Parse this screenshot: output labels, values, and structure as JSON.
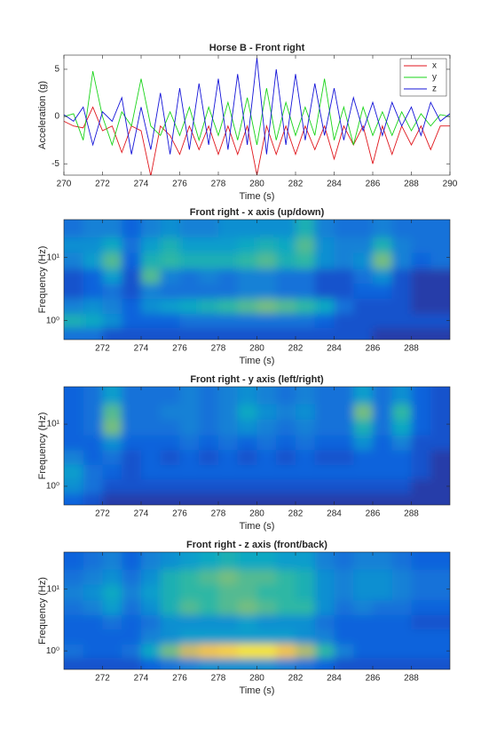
{
  "chart_data": [
    {
      "type": "line",
      "title": "Horse B - Front right",
      "x_label": "Time (s)",
      "y_label": "Acceleration (g)",
      "xlim": [
        270,
        290
      ],
      "xticks": [
        270,
        272,
        274,
        276,
        278,
        280,
        282,
        284,
        286,
        288,
        290
      ],
      "ylim": [
        -6.2,
        6.5
      ],
      "yticks": [
        -5,
        0,
        5
      ],
      "legend": "northeast",
      "x": [
        270,
        270.5,
        271,
        271.5,
        272,
        272.5,
        273,
        273.5,
        274,
        274.5,
        275,
        275.5,
        276,
        276.5,
        277,
        277.5,
        278,
        278.5,
        279,
        279.5,
        280,
        280.5,
        281,
        281.5,
        282,
        282.5,
        283,
        283.5,
        284,
        284.5,
        285,
        285.5,
        286,
        286.5,
        287,
        287.5,
        288,
        288.5,
        289,
        289.5,
        290
      ],
      "series": [
        {
          "name": "x",
          "color": "#e0161c",
          "values": [
            -0.5,
            -1,
            -1.2,
            1,
            -1.5,
            -1,
            -3.8,
            -1,
            -1.5,
            -6.3,
            -1,
            -2,
            -4,
            -1,
            -3.5,
            -1,
            -4,
            -1,
            -4,
            -1,
            -6.2,
            -1,
            -4,
            -1,
            -4,
            -1,
            -3.5,
            -1,
            -4.5,
            -1,
            -3,
            -1,
            -5,
            -1,
            -4,
            -1,
            -3,
            -1,
            -3.5,
            -1,
            -1
          ]
        },
        {
          "name": "y",
          "color": "#19d419",
          "values": [
            0,
            0.3,
            -2.5,
            4.8,
            0,
            -3,
            0.5,
            -1,
            4,
            -1,
            -2,
            0.5,
            -2,
            1,
            -2.5,
            1,
            -2,
            1.5,
            -2.5,
            2,
            -3,
            3,
            -2.5,
            1.5,
            -2,
            1,
            -2,
            4,
            -2.5,
            1,
            -3,
            1,
            -2,
            0.5,
            -2,
            0.5,
            -1.5,
            0.3,
            -1,
            0.2,
            0
          ]
        },
        {
          "name": "z",
          "color": "#1414d8",
          "values": [
            0.2,
            -0.5,
            1,
            -3,
            0.5,
            -0.5,
            2,
            -4,
            1,
            -3.5,
            2.5,
            -4,
            3,
            -3.5,
            3.5,
            -3,
            4,
            -3.5,
            4.5,
            -3,
            6.2,
            -4,
            5,
            -3,
            4.5,
            -2.5,
            3.5,
            -2,
            3,
            -2.5,
            2,
            -1.5,
            1.5,
            -2,
            1.5,
            -1,
            1,
            -2,
            1.5,
            -0.5,
            0.3
          ]
        }
      ]
    },
    {
      "type": "heatmap",
      "title": "Front right - x axis (up/down)",
      "x_label": "Time (s)",
      "y_label": "Frequency (Hz)",
      "xlim": [
        270,
        290
      ],
      "xticks": [
        272,
        274,
        276,
        278,
        280,
        282,
        284,
        286,
        288
      ],
      "ylim": [
        0.5,
        40
      ],
      "log_y": true,
      "yticks": [
        {
          "value": 1,
          "label": "10⁰"
        },
        {
          "value": 10,
          "label": "10¹"
        }
      ],
      "colormap": [
        "#352a87",
        "#0f5cdd",
        "#1481d6",
        "#06a4ca",
        "#2eb7a4",
        "#87bf77",
        "#d1bb59",
        "#fec832",
        "#f9fb0e"
      ],
      "x": [
        270.5,
        271.5,
        272.5,
        273.5,
        274.5,
        275.5,
        276.5,
        277.5,
        278.5,
        279.5,
        280.5,
        281.5,
        282.5,
        283.5,
        284.5,
        285.5,
        286.5,
        287.5,
        288.5,
        289.5
      ],
      "frequencies": [
        0.6,
        1,
        1.7,
        3,
        5,
        9,
        16,
        28
      ],
      "z": [
        [
          0.2,
          0.2,
          0.1,
          0.1,
          0.1,
          0.1,
          0.1,
          0.1,
          0.1,
          0.1,
          0.1,
          0.1,
          0.1,
          0.1,
          0.1,
          0.1,
          0.05,
          0.05,
          0.05,
          0.05
        ],
        [
          0.45,
          0.4,
          0.3,
          0.15,
          0.15,
          0.15,
          0.2,
          0.2,
          0.2,
          0.2,
          0.2,
          0.2,
          0.2,
          0.15,
          0.1,
          0.1,
          0.1,
          0.1,
          0.1,
          0.1
        ],
        [
          0.25,
          0.3,
          0.25,
          0.15,
          0.3,
          0.35,
          0.4,
          0.45,
          0.5,
          0.55,
          0.6,
          0.55,
          0.5,
          0.4,
          0.2,
          0.1,
          0.1,
          0.1,
          0.05,
          0.05
        ],
        [
          0.1,
          0.15,
          0.2,
          0.1,
          0.25,
          0.2,
          0.2,
          0.2,
          0.2,
          0.25,
          0.25,
          0.2,
          0.2,
          0.1,
          0.1,
          0.15,
          0.15,
          0.1,
          0.05,
          0.05
        ],
        [
          0.1,
          0.15,
          0.35,
          0.1,
          0.55,
          0.25,
          0.2,
          0.25,
          0.2,
          0.25,
          0.25,
          0.2,
          0.2,
          0.1,
          0.1,
          0.2,
          0.3,
          0.1,
          0.05,
          0.05
        ],
        [
          0.25,
          0.35,
          0.55,
          0.15,
          0.45,
          0.5,
          0.45,
          0.45,
          0.45,
          0.5,
          0.55,
          0.45,
          0.5,
          0.3,
          0.25,
          0.3,
          0.6,
          0.25,
          0.15,
          0.2
        ],
        [
          0.3,
          0.3,
          0.4,
          0.2,
          0.35,
          0.45,
          0.35,
          0.35,
          0.35,
          0.4,
          0.45,
          0.4,
          0.55,
          0.3,
          0.25,
          0.25,
          0.45,
          0.25,
          0.2,
          0.2
        ],
        [
          0.2,
          0.25,
          0.25,
          0.15,
          0.25,
          0.3,
          0.25,
          0.25,
          0.3,
          0.3,
          0.3,
          0.3,
          0.45,
          0.25,
          0.2,
          0.2,
          0.25,
          0.2,
          0.2,
          0.2
        ]
      ]
    },
    {
      "type": "heatmap",
      "title": "Front right - y axis (left/right)",
      "x_label": "Time (s)",
      "y_label": "Frequency (Hz)",
      "xlim": [
        270,
        290
      ],
      "xticks": [
        272,
        274,
        276,
        278,
        280,
        282,
        284,
        286,
        288
      ],
      "ylim": [
        0.5,
        40
      ],
      "log_y": true,
      "yticks": [
        {
          "value": 1,
          "label": "10⁰"
        },
        {
          "value": 10,
          "label": "10¹"
        }
      ],
      "colormap": [
        "#352a87",
        "#0f5cdd",
        "#1481d6",
        "#06a4ca",
        "#2eb7a4",
        "#87bf77",
        "#d1bb59",
        "#fec832",
        "#f9fb0e"
      ],
      "x": [
        270.5,
        271.5,
        272.5,
        273.5,
        274.5,
        275.5,
        276.5,
        277.5,
        278.5,
        279.5,
        280.5,
        281.5,
        282.5,
        283.5,
        284.5,
        285.5,
        286.5,
        287.5,
        288.5,
        289.5
      ],
      "frequencies": [
        0.6,
        1,
        1.7,
        3,
        5,
        9,
        16,
        28
      ],
      "z": [
        [
          0.15,
          0.1,
          0.05,
          0.05,
          0.05,
          0.05,
          0.05,
          0.05,
          0.05,
          0.05,
          0.05,
          0.05,
          0.05,
          0.05,
          0.05,
          0.05,
          0.05,
          0.05,
          0.05,
          0.05
        ],
        [
          0.3,
          0.2,
          0.1,
          0.1,
          0.1,
          0.1,
          0.1,
          0.1,
          0.1,
          0.1,
          0.1,
          0.1,
          0.1,
          0.1,
          0.1,
          0.1,
          0.1,
          0.1,
          0.05,
          0.05
        ],
        [
          0.35,
          0.2,
          0.15,
          0.1,
          0.15,
          0.15,
          0.15,
          0.15,
          0.15,
          0.15,
          0.15,
          0.15,
          0.15,
          0.15,
          0.15,
          0.15,
          0.15,
          0.15,
          0.1,
          0.05
        ],
        [
          0.25,
          0.15,
          0.2,
          0.1,
          0.15,
          0.1,
          0.15,
          0.1,
          0.15,
          0.1,
          0.15,
          0.1,
          0.15,
          0.1,
          0.1,
          0.15,
          0.15,
          0.15,
          0.1,
          0.05
        ],
        [
          0.15,
          0.15,
          0.3,
          0.15,
          0.15,
          0.15,
          0.2,
          0.15,
          0.2,
          0.15,
          0.2,
          0.15,
          0.2,
          0.15,
          0.15,
          0.3,
          0.15,
          0.25,
          0.1,
          0.1
        ],
        [
          0.15,
          0.2,
          0.6,
          0.2,
          0.2,
          0.2,
          0.25,
          0.2,
          0.25,
          0.3,
          0.25,
          0.2,
          0.25,
          0.2,
          0.2,
          0.45,
          0.2,
          0.4,
          0.15,
          0.1
        ],
        [
          0.15,
          0.2,
          0.55,
          0.2,
          0.2,
          0.25,
          0.25,
          0.2,
          0.25,
          0.4,
          0.3,
          0.25,
          0.3,
          0.2,
          0.2,
          0.6,
          0.2,
          0.5,
          0.15,
          0.1
        ],
        [
          0.15,
          0.2,
          0.35,
          0.2,
          0.2,
          0.2,
          0.25,
          0.2,
          0.25,
          0.3,
          0.25,
          0.2,
          0.25,
          0.2,
          0.2,
          0.35,
          0.2,
          0.3,
          0.15,
          0.1
        ]
      ]
    },
    {
      "type": "heatmap",
      "title": "Front right - z axis (front/back)",
      "x_label": "Time (s)",
      "y_label": "Frequency (Hz)",
      "xlim": [
        270,
        290
      ],
      "xticks": [
        272,
        274,
        276,
        278,
        280,
        282,
        284,
        286,
        288
      ],
      "ylim": [
        0.5,
        40
      ],
      "log_y": true,
      "yticks": [
        {
          "value": 1,
          "label": "10⁰"
        },
        {
          "value": 10,
          "label": "10¹"
        }
      ],
      "colormap": [
        "#352a87",
        "#0f5cdd",
        "#1481d6",
        "#06a4ca",
        "#2eb7a4",
        "#87bf77",
        "#d1bb59",
        "#fec832",
        "#f9fb0e"
      ],
      "x": [
        270.5,
        271.5,
        272.5,
        273.5,
        274.5,
        275.5,
        276.5,
        277.5,
        278.5,
        279.5,
        280.5,
        281.5,
        282.5,
        283.5,
        284.5,
        285.5,
        286.5,
        287.5,
        288.5,
        289.5
      ],
      "frequencies": [
        0.6,
        1,
        1.7,
        3,
        5,
        9,
        16,
        28
      ],
      "z": [
        [
          0.1,
          0.1,
          0.1,
          0.1,
          0.15,
          0.2,
          0.25,
          0.3,
          0.3,
          0.3,
          0.3,
          0.25,
          0.2,
          0.15,
          0.1,
          0.1,
          0.1,
          0.1,
          0.1,
          0.1
        ],
        [
          0.2,
          0.15,
          0.15,
          0.2,
          0.4,
          0.6,
          0.75,
          0.85,
          0.9,
          0.95,
          0.95,
          0.85,
          0.7,
          0.5,
          0.25,
          0.15,
          0.15,
          0.15,
          0.15,
          0.15
        ],
        [
          0.15,
          0.15,
          0.15,
          0.15,
          0.25,
          0.3,
          0.35,
          0.35,
          0.35,
          0.35,
          0.35,
          0.35,
          0.3,
          0.25,
          0.15,
          0.15,
          0.15,
          0.15,
          0.15,
          0.15
        ],
        [
          0.15,
          0.15,
          0.2,
          0.15,
          0.2,
          0.3,
          0.3,
          0.3,
          0.3,
          0.35,
          0.3,
          0.3,
          0.3,
          0.2,
          0.15,
          0.15,
          0.15,
          0.15,
          0.1,
          0.1
        ],
        [
          0.2,
          0.25,
          0.35,
          0.2,
          0.3,
          0.45,
          0.55,
          0.5,
          0.55,
          0.6,
          0.55,
          0.5,
          0.5,
          0.3,
          0.2,
          0.25,
          0.2,
          0.2,
          0.15,
          0.15
        ],
        [
          0.25,
          0.3,
          0.4,
          0.25,
          0.35,
          0.45,
          0.5,
          0.5,
          0.55,
          0.55,
          0.5,
          0.5,
          0.45,
          0.3,
          0.25,
          0.3,
          0.3,
          0.25,
          0.2,
          0.2
        ],
        [
          0.2,
          0.25,
          0.3,
          0.2,
          0.3,
          0.45,
          0.5,
          0.55,
          0.6,
          0.55,
          0.55,
          0.5,
          0.45,
          0.3,
          0.25,
          0.3,
          0.3,
          0.25,
          0.2,
          0.2
        ],
        [
          0.15,
          0.2,
          0.25,
          0.15,
          0.25,
          0.3,
          0.35,
          0.4,
          0.45,
          0.4,
          0.4,
          0.35,
          0.35,
          0.25,
          0.2,
          0.25,
          0.25,
          0.2,
          0.15,
          0.15
        ]
      ]
    }
  ]
}
